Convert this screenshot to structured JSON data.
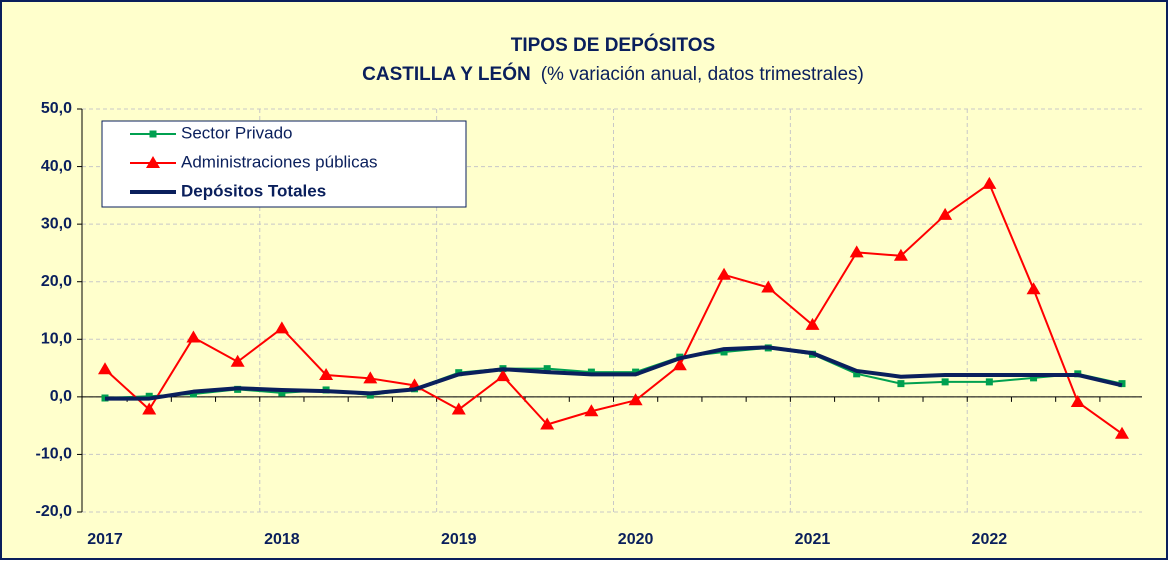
{
  "chart_data": {
    "type": "line",
    "title": "TIPOS DE DEPÓSITOS",
    "subtitle": "CASTILLA Y LEÓN",
    "subtitle_note": "(% variación anual, datos trimestrales)",
    "categories": [
      "2017",
      null,
      null,
      null,
      "2018",
      null,
      null,
      null,
      "2019",
      null,
      null,
      null,
      "2020",
      null,
      null,
      null,
      "2021",
      null,
      null,
      null,
      "2022",
      null,
      null,
      null
    ],
    "series": [
      {
        "name": "Sector Privado",
        "color": "#00a050",
        "marker": "square",
        "values": [
          -0.2,
          0.1,
          0.5,
          1.3,
          0.7,
          1.2,
          0.3,
          1.4,
          4.2,
          4.9,
          4.9,
          4.3,
          4.3,
          6.9,
          7.8,
          8.5,
          7.4,
          4.0,
          2.3,
          2.6,
          2.6,
          3.3,
          4.0,
          2.3
        ]
      },
      {
        "name": "Administraciones públicas",
        "color": "#ff0000",
        "marker": "triangle",
        "values": [
          4.8,
          -2.2,
          10.3,
          6.1,
          11.9,
          3.8,
          3.2,
          2.0,
          -2.2,
          3.6,
          -4.8,
          -2.5,
          -0.6,
          5.5,
          21.2,
          19.0,
          12.5,
          25.1,
          24.5,
          31.6,
          37.0,
          18.7,
          -0.9,
          -6.4
        ]
      },
      {
        "name": "Depósitos Totales",
        "color": "#0a1f5c",
        "marker": "none",
        "values": [
          -0.3,
          -0.3,
          0.9,
          1.5,
          1.2,
          1.0,
          0.6,
          1.3,
          3.9,
          4.8,
          4.3,
          3.9,
          3.9,
          6.7,
          8.3,
          8.6,
          7.6,
          4.5,
          3.5,
          3.8,
          3.8,
          3.8,
          3.8,
          2.0
        ]
      }
    ],
    "ylim": [
      -20,
      50
    ],
    "yticks": [
      {
        "value": -20,
        "label": "-20,0"
      },
      {
        "value": -10,
        "label": "-10,0"
      },
      {
        "value": 0,
        "label": "0,0"
      },
      {
        "value": 10,
        "label": "10,0"
      },
      {
        "value": 20,
        "label": "20,0"
      },
      {
        "value": 30,
        "label": "30,0"
      },
      {
        "value": 40,
        "label": "40,0"
      },
      {
        "value": 50,
        "label": "50,0"
      }
    ],
    "grid": true,
    "legend": "upper left"
  }
}
